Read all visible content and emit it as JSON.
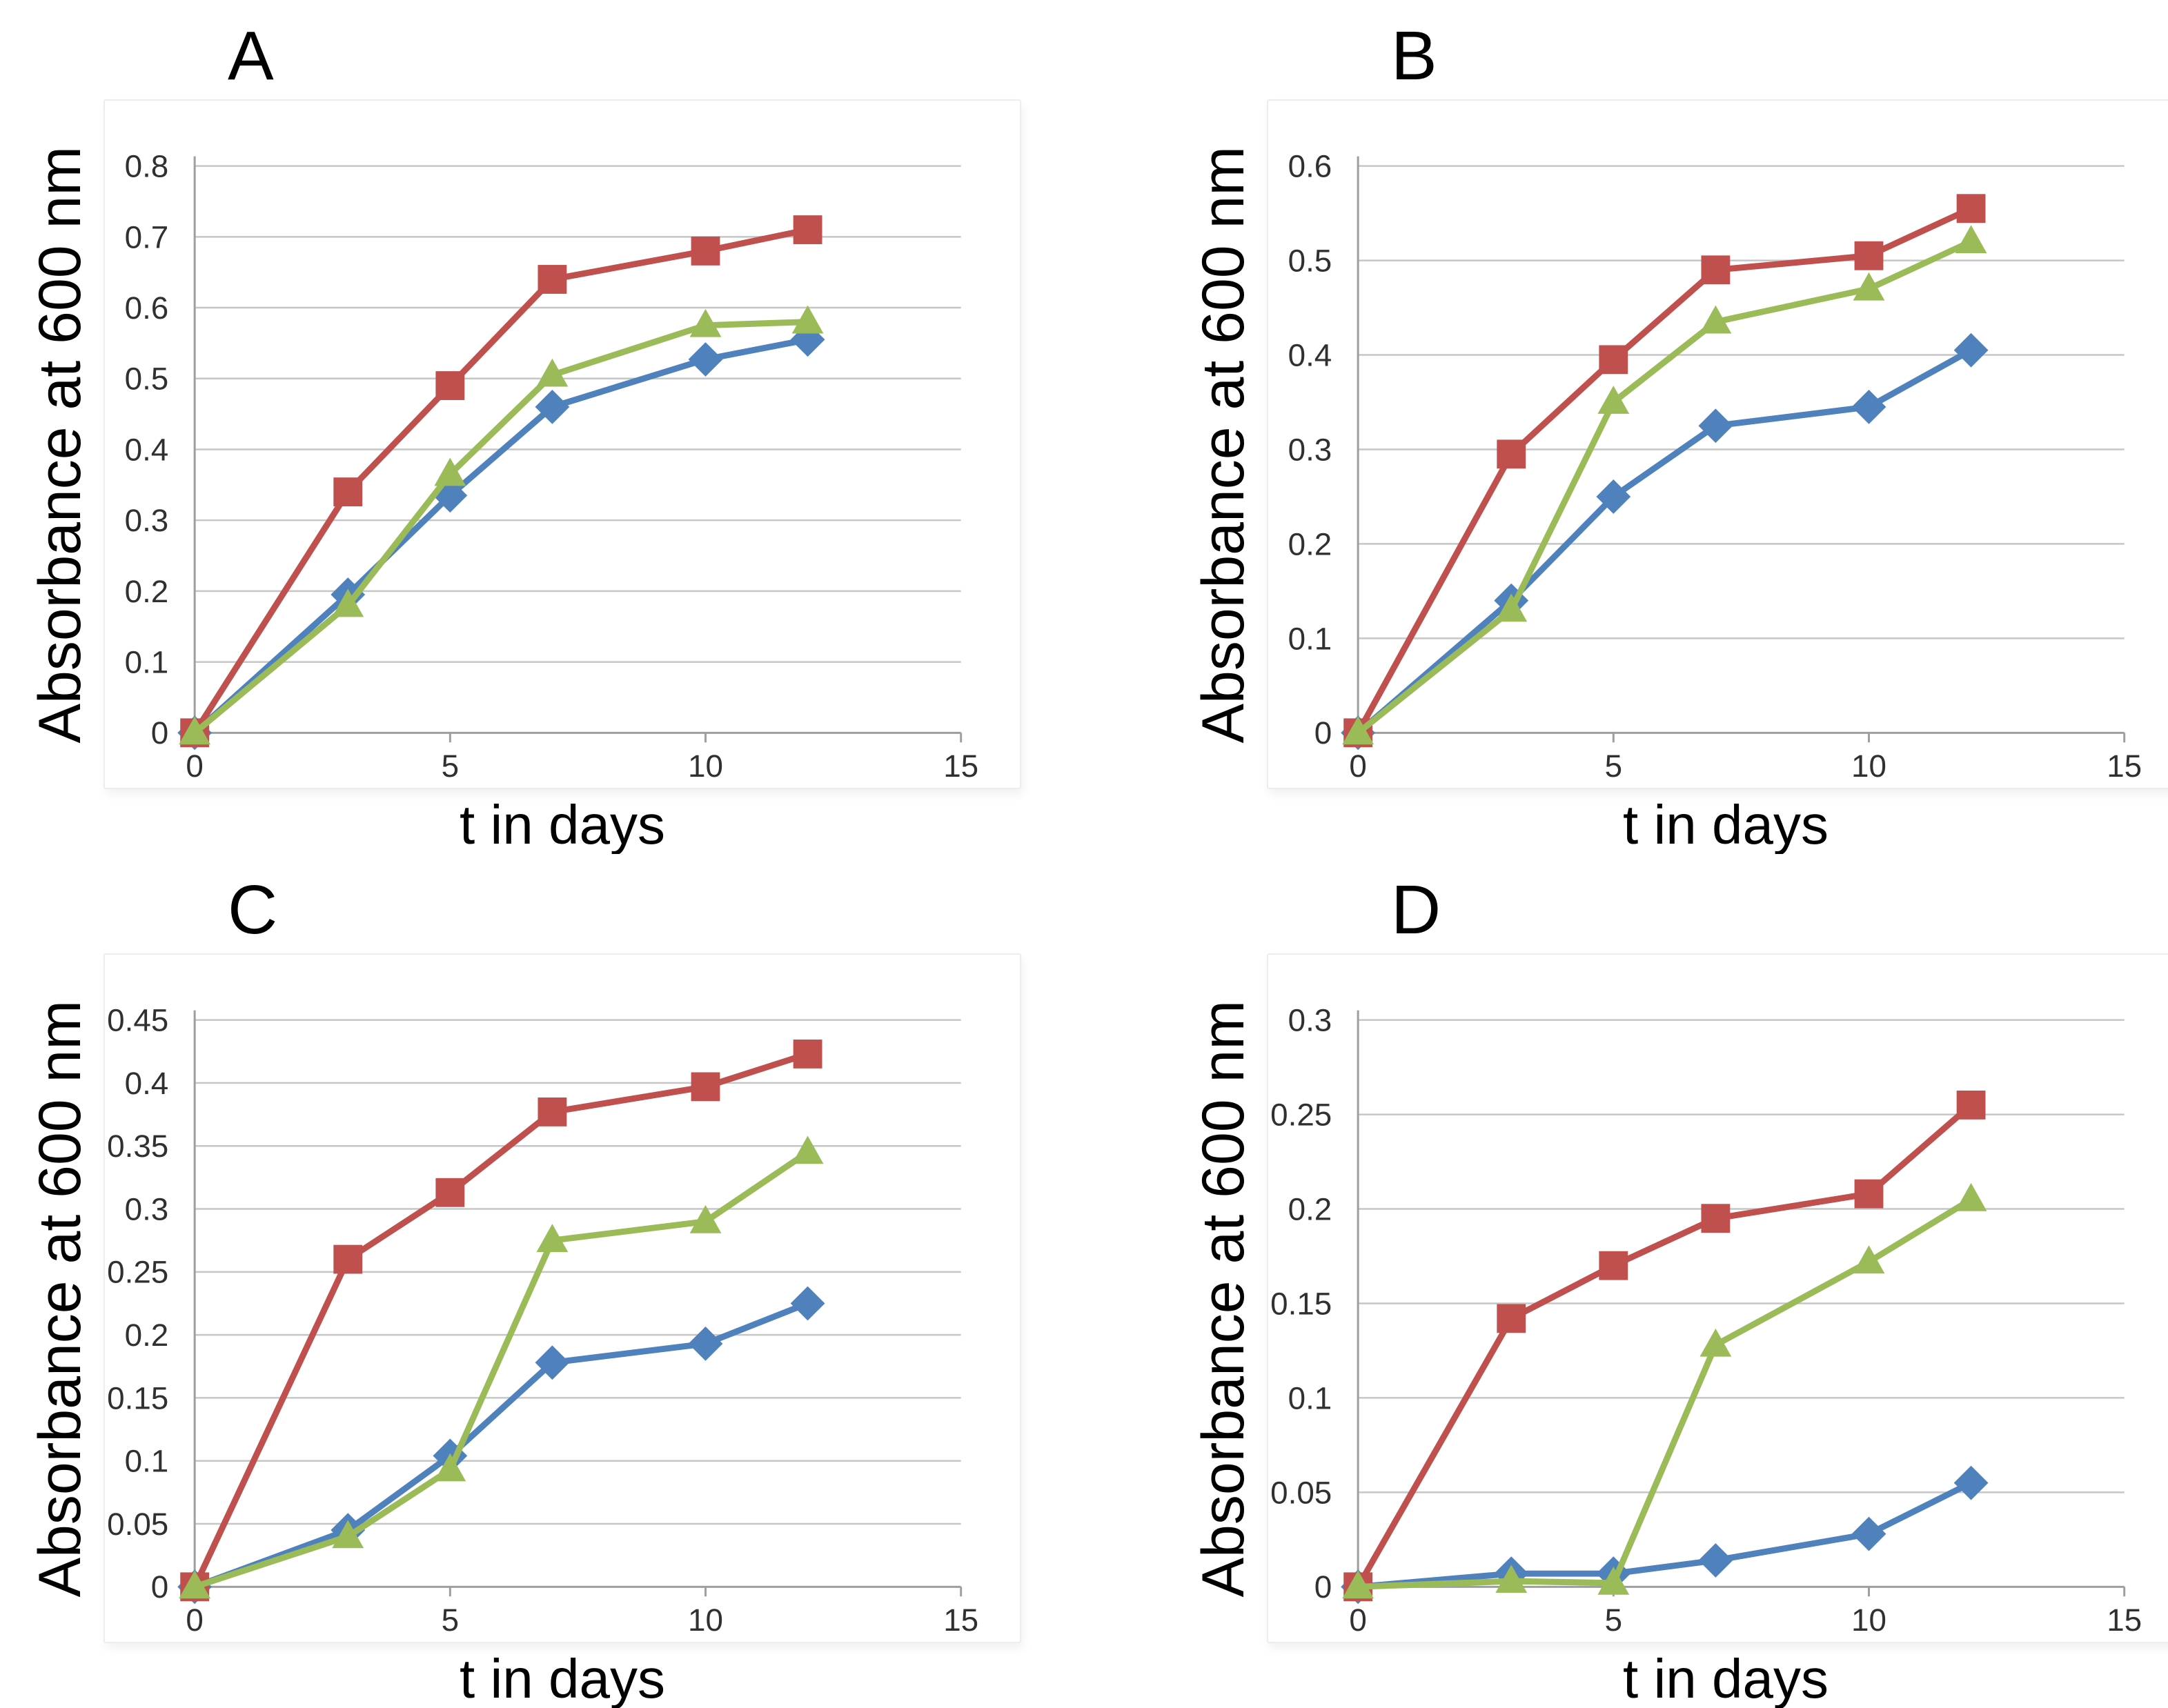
{
  "colors": {
    "blue_series": "#4F81BD",
    "red_series": "#C0504D",
    "green_series": "#9BBB59",
    "gridline": "#C6C6C6",
    "axis": "#9E9E9E",
    "tick_text": "#303030"
  },
  "chart_data": [
    {
      "id": "A",
      "type": "line",
      "title": "A",
      "xlabel": "t in days",
      "ylabel": "Absorbance at 600 nm",
      "x": [
        0,
        3,
        5,
        7,
        10,
        12
      ],
      "xlim": [
        0,
        15
      ],
      "xticks": [
        0,
        5,
        10,
        15
      ],
      "xtick_labels": [
        "0",
        "5",
        "10",
        "15"
      ],
      "ylim": [
        0,
        0.8
      ],
      "yticks": [
        0,
        0.1,
        0.2,
        0.3,
        0.4,
        0.5,
        0.6,
        0.7,
        0.8
      ],
      "ytick_labels": [
        "0",
        "0.1",
        "0.2",
        "0.3",
        "0.4",
        "0.5",
        "0.6",
        "0.7",
        "0.8"
      ],
      "grid": true,
      "legend": "none",
      "series": [
        {
          "name": "blue-diamond",
          "marker": "diamond",
          "color": "#4F81BD",
          "values": [
            0,
            0.195,
            0.335,
            0.46,
            0.527,
            0.555
          ]
        },
        {
          "name": "red-square",
          "marker": "square",
          "color": "#C0504D",
          "values": [
            0,
            0.34,
            0.49,
            0.64,
            0.68,
            0.71
          ]
        },
        {
          "name": "green-triangle",
          "marker": "triangle",
          "color": "#9BBB59",
          "values": [
            0,
            0.18,
            0.365,
            0.505,
            0.575,
            0.58
          ]
        }
      ]
    },
    {
      "id": "B",
      "type": "line",
      "title": "B",
      "xlabel": "t in days",
      "ylabel": "Absorbance at 600 nm",
      "x": [
        0,
        3,
        5,
        7,
        10,
        12
      ],
      "xlim": [
        0,
        15
      ],
      "xticks": [
        0,
        5,
        10,
        15
      ],
      "xtick_labels": [
        "0",
        "5",
        "10",
        "15"
      ],
      "ylim": [
        0,
        0.6
      ],
      "yticks": [
        0,
        0.1,
        0.2,
        0.3,
        0.4,
        0.5,
        0.6
      ],
      "ytick_labels": [
        "0",
        "0.1",
        "0.2",
        "0.3",
        "0.4",
        "0.5",
        "0.6"
      ],
      "grid": true,
      "legend": "none",
      "series": [
        {
          "name": "blue-diamond",
          "marker": "diamond",
          "color": "#4F81BD",
          "values": [
            0,
            0.14,
            0.25,
            0.325,
            0.345,
            0.405
          ]
        },
        {
          "name": "red-square",
          "marker": "square",
          "color": "#C0504D",
          "values": [
            0,
            0.295,
            0.395,
            0.49,
            0.505,
            0.555
          ]
        },
        {
          "name": "green-triangle",
          "marker": "triangle",
          "color": "#9BBB59",
          "values": [
            0,
            0.13,
            0.35,
            0.435,
            0.47,
            0.52
          ]
        }
      ]
    },
    {
      "id": "C",
      "type": "line",
      "title": "C",
      "xlabel": "t in days",
      "ylabel": "Absorbance at 600 nm",
      "x": [
        0,
        3,
        5,
        7,
        10,
        12
      ],
      "xlim": [
        0,
        15
      ],
      "xticks": [
        0,
        5,
        10,
        15
      ],
      "xtick_labels": [
        "0",
        "5",
        "10",
        "15"
      ],
      "ylim": [
        0,
        0.45
      ],
      "yticks": [
        0,
        0.05,
        0.1,
        0.15,
        0.2,
        0.25,
        0.3,
        0.35,
        0.4,
        0.45
      ],
      "ytick_labels": [
        "0",
        "0.05",
        "0.1",
        "0.15",
        "0.2",
        "0.25",
        "0.3",
        "0.35",
        "0.4",
        "0.45"
      ],
      "grid": true,
      "legend": "none",
      "series": [
        {
          "name": "blue-diamond",
          "marker": "diamond",
          "color": "#4F81BD",
          "values": [
            0,
            0.045,
            0.104,
            0.178,
            0.193,
            0.225
          ]
        },
        {
          "name": "red-square",
          "marker": "square",
          "color": "#C0504D",
          "values": [
            0,
            0.26,
            0.313,
            0.377,
            0.397,
            0.423
          ]
        },
        {
          "name": "green-triangle",
          "marker": "triangle",
          "color": "#9BBB59",
          "values": [
            0,
            0.04,
            0.093,
            0.275,
            0.29,
            0.345
          ]
        }
      ]
    },
    {
      "id": "D",
      "type": "line",
      "title": "D",
      "xlabel": "t in days",
      "ylabel": "Absorbance at 600 nm",
      "x": [
        0,
        3,
        5,
        7,
        10,
        12
      ],
      "xlim": [
        0,
        15
      ],
      "xticks": [
        0,
        5,
        10,
        15
      ],
      "xtick_labels": [
        "0",
        "5",
        "10",
        "15"
      ],
      "ylim": [
        0,
        0.3
      ],
      "yticks": [
        0,
        0.05,
        0.1,
        0.15,
        0.2,
        0.25,
        0.3
      ],
      "ytick_labels": [
        "0",
        "0.05",
        "0.1",
        "0.15",
        "0.2",
        "0.25",
        "0.3"
      ],
      "grid": true,
      "legend": "none",
      "series": [
        {
          "name": "blue-diamond",
          "marker": "diamond",
          "color": "#4F81BD",
          "values": [
            0,
            0.007,
            0.007,
            0.014,
            0.028,
            0.055
          ]
        },
        {
          "name": "red-square",
          "marker": "square",
          "color": "#C0504D",
          "values": [
            0,
            0.142,
            0.17,
            0.195,
            0.208,
            0.255
          ]
        },
        {
          "name": "green-triangle",
          "marker": "triangle",
          "color": "#9BBB59",
          "values": [
            0,
            0.003,
            0.002,
            0.128,
            0.172,
            0.205
          ]
        }
      ]
    }
  ]
}
